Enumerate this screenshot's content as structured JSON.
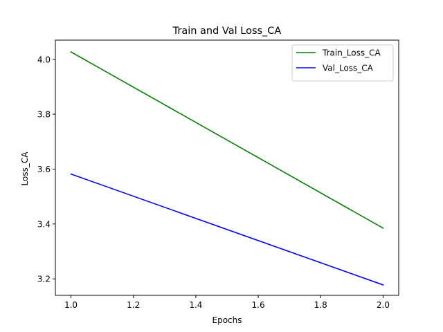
{
  "chart_data": {
    "type": "line",
    "title": "Train and Val Loss_CA",
    "xlabel": "Epochs",
    "ylabel": "Loss_CA",
    "xlim": [
      0.95,
      2.05
    ],
    "ylim": [
      3.14,
      4.07
    ],
    "xticks": [
      1.0,
      1.2,
      1.4,
      1.6,
      1.8,
      2.0
    ],
    "xtick_labels": [
      "1.0",
      "1.2",
      "1.4",
      "1.6",
      "1.8",
      "2.0"
    ],
    "yticks": [
      3.2,
      3.4,
      3.6,
      3.8,
      4.0
    ],
    "ytick_labels": [
      "3.2",
      "3.4",
      "3.6",
      "3.8",
      "4.0"
    ],
    "grid": false,
    "legend_position": "top-right",
    "series": [
      {
        "name": "Train_Loss_CA",
        "color": "#008000",
        "x": [
          1.0,
          2.0
        ],
        "y": [
          4.027,
          3.385
        ]
      },
      {
        "name": "Val_Loss_CA",
        "color": "#0000ff",
        "x": [
          1.0,
          2.0
        ],
        "y": [
          3.582,
          3.178
        ]
      }
    ]
  }
}
